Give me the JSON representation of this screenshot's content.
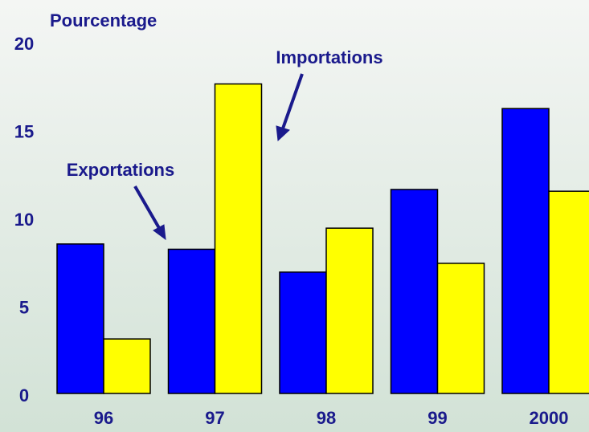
{
  "chart_data": {
    "type": "bar",
    "y_label": "Pourcentage",
    "categories": [
      "96",
      "97",
      "98",
      "99",
      "2000"
    ],
    "series": [
      {
        "name": "Exportations",
        "color": "#0000ff",
        "values": [
          8.5,
          8.2,
          6.9,
          11.6,
          16.2
        ]
      },
      {
        "name": "Importations",
        "color": "#ffff00",
        "values": [
          3.1,
          17.6,
          9.4,
          7.4,
          11.5
        ]
      }
    ],
    "ylim": [
      0,
      20
    ],
    "yticks": [
      0,
      5,
      10,
      15,
      20
    ],
    "grid": false
  }
}
